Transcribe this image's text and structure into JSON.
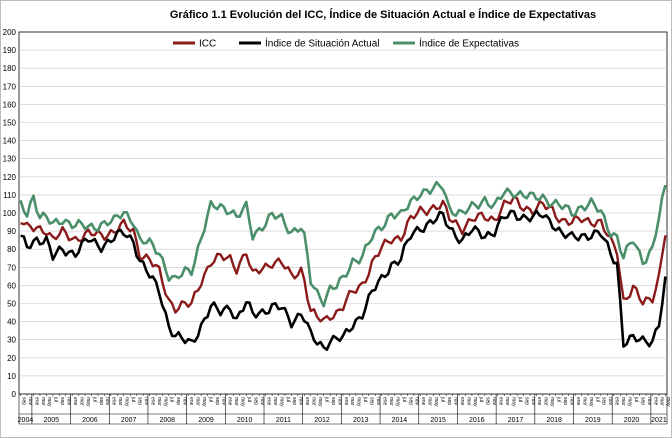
{
  "chart_data": {
    "type": "line",
    "title": "Gráfico 1.1 Evolución del ICC, Índice de Situación Actual e Índice de Expectativas",
    "xlabel": "",
    "ylabel": "",
    "ylim": [
      0,
      200
    ],
    "y_ticks": [
      0,
      10,
      20,
      30,
      40,
      50,
      60,
      70,
      80,
      90,
      100,
      110,
      120,
      130,
      140,
      150,
      160,
      170,
      180,
      190,
      200
    ],
    "grid": true,
    "legend_position": "top",
    "x_start": "2004-09",
    "x_end": "2021-05",
    "month_labels": [
      "ene",
      "feb",
      "mar",
      "abr",
      "may",
      "jun",
      "jul",
      "ago",
      "sep",
      "oct",
      "nov",
      "dic"
    ],
    "years": [
      "2004",
      "2005",
      "2006",
      "2007",
      "2008",
      "2009",
      "2010",
      "2011",
      "2012",
      "2013",
      "2014",
      "2015",
      "2016",
      "2017",
      "2018",
      "2019",
      "2020",
      "2021"
    ],
    "series": [
      {
        "name": "ICC",
        "color": "#8b1a1a",
        "anchors": [
          [
            "2004-09",
            96
          ],
          [
            "2004-11",
            91
          ],
          [
            "2005-02",
            92
          ],
          [
            "2005-05",
            91
          ],
          [
            "2005-07",
            85
          ],
          [
            "2005-10",
            89
          ],
          [
            "2006-02",
            86
          ],
          [
            "2006-06",
            88
          ],
          [
            "2006-10",
            88
          ],
          [
            "2007-02",
            90
          ],
          [
            "2007-05",
            93
          ],
          [
            "2007-08",
            90
          ],
          [
            "2007-10",
            78
          ],
          [
            "2008-01",
            74
          ],
          [
            "2008-04",
            67
          ],
          [
            "2008-07",
            52
          ],
          [
            "2008-09",
            48
          ],
          [
            "2008-12",
            49
          ],
          [
            "2009-02",
            49
          ],
          [
            "2009-05",
            63
          ],
          [
            "2009-08",
            73
          ],
          [
            "2009-11",
            75
          ],
          [
            "2010-02",
            75
          ],
          [
            "2010-04",
            70
          ],
          [
            "2010-07",
            78
          ],
          [
            "2010-09",
            65
          ],
          [
            "2010-12",
            70
          ],
          [
            "2011-03",
            73
          ],
          [
            "2011-06",
            72
          ],
          [
            "2011-09",
            65
          ],
          [
            "2011-12",
            69
          ],
          [
            "2012-01",
            64
          ],
          [
            "2012-03",
            45
          ],
          [
            "2012-05",
            42
          ],
          [
            "2012-07",
            40
          ],
          [
            "2012-09",
            44
          ],
          [
            "2012-11",
            45
          ],
          [
            "2013-01",
            48
          ],
          [
            "2013-04",
            56
          ],
          [
            "2013-07",
            61
          ],
          [
            "2013-10",
            72
          ],
          [
            "2014-01",
            80
          ],
          [
            "2014-04",
            86
          ],
          [
            "2014-07",
            87
          ],
          [
            "2014-10",
            96
          ],
          [
            "2015-01",
            101
          ],
          [
            "2015-04",
            103
          ],
          [
            "2015-08",
            104
          ],
          [
            "2015-10",
            97
          ],
          [
            "2016-02",
            92
          ],
          [
            "2016-05",
            96
          ],
          [
            "2016-09",
            98
          ],
          [
            "2016-12",
            97
          ],
          [
            "2017-03",
            104
          ],
          [
            "2017-06",
            107
          ],
          [
            "2017-09",
            104
          ],
          [
            "2017-12",
            101
          ],
          [
            "2018-03",
            104
          ],
          [
            "2018-06",
            102
          ],
          [
            "2018-09",
            96
          ],
          [
            "2018-12",
            94
          ],
          [
            "2019-03",
            97
          ],
          [
            "2019-06",
            96
          ],
          [
            "2019-09",
            94
          ],
          [
            "2019-12",
            84
          ],
          [
            "2020-02",
            80
          ],
          [
            "2020-04",
            52
          ],
          [
            "2020-07",
            58
          ],
          [
            "2020-10",
            50
          ],
          [
            "2021-01",
            54
          ],
          [
            "2021-03",
            65
          ],
          [
            "2021-05",
            89
          ]
        ]
      },
      {
        "name": "Índice de Situación Actual",
        "color": "#000000",
        "anchors": [
          [
            "2004-09",
            86
          ],
          [
            "2004-11",
            81
          ],
          [
            "2005-02",
            86
          ],
          [
            "2005-05",
            85
          ],
          [
            "2005-07",
            75
          ],
          [
            "2005-10",
            80
          ],
          [
            "2006-02",
            78
          ],
          [
            "2006-06",
            85
          ],
          [
            "2006-10",
            82
          ],
          [
            "2007-02",
            86
          ],
          [
            "2007-05",
            89
          ],
          [
            "2007-08",
            85
          ],
          [
            "2007-10",
            74
          ],
          [
            "2008-01",
            65
          ],
          [
            "2008-04",
            57
          ],
          [
            "2008-07",
            38
          ],
          [
            "2008-09",
            32
          ],
          [
            "2008-12",
            29
          ],
          [
            "2009-02",
            28
          ],
          [
            "2009-05",
            38
          ],
          [
            "2009-08",
            48
          ],
          [
            "2009-11",
            45
          ],
          [
            "2010-02",
            49
          ],
          [
            "2010-04",
            41
          ],
          [
            "2010-07",
            50
          ],
          [
            "2010-09",
            44
          ],
          [
            "2010-12",
            46
          ],
          [
            "2011-03",
            48
          ],
          [
            "2011-06",
            47
          ],
          [
            "2011-09",
            40
          ],
          [
            "2011-12",
            45
          ],
          [
            "2012-01",
            42
          ],
          [
            "2012-03",
            32
          ],
          [
            "2012-05",
            28
          ],
          [
            "2012-07",
            26
          ],
          [
            "2012-09",
            30
          ],
          [
            "2012-11",
            31
          ],
          [
            "2013-01",
            30
          ],
          [
            "2013-04",
            38
          ],
          [
            "2013-07",
            45
          ],
          [
            "2013-10",
            56
          ],
          [
            "2014-01",
            63
          ],
          [
            "2014-04",
            72
          ],
          [
            "2014-07",
            75
          ],
          [
            "2014-10",
            87
          ],
          [
            "2015-01",
            92
          ],
          [
            "2015-04",
            95
          ],
          [
            "2015-08",
            98
          ],
          [
            "2015-10",
            92
          ],
          [
            "2016-02",
            85
          ],
          [
            "2016-05",
            90
          ],
          [
            "2016-09",
            88
          ],
          [
            "2016-12",
            90
          ],
          [
            "2017-03",
            97
          ],
          [
            "2017-06",
            100
          ],
          [
            "2017-09",
            98
          ],
          [
            "2017-12",
            97
          ],
          [
            "2018-03",
            99
          ],
          [
            "2018-06",
            95
          ],
          [
            "2018-09",
            88
          ],
          [
            "2018-12",
            86
          ],
          [
            "2019-03",
            88
          ],
          [
            "2019-06",
            88
          ],
          [
            "2019-09",
            88
          ],
          [
            "2019-12",
            78
          ],
          [
            "2020-02",
            73
          ],
          [
            "2020-04",
            28
          ],
          [
            "2020-07",
            30
          ],
          [
            "2020-10",
            30
          ],
          [
            "2021-01",
            30
          ],
          [
            "2021-03",
            38
          ],
          [
            "2021-05",
            62
          ]
        ]
      },
      {
        "name": "Índice de Expectativas",
        "color": "#4a8f6a",
        "anchors": [
          [
            "2004-09",
            104
          ],
          [
            "2004-11",
            100
          ],
          [
            "2005-01",
            110
          ],
          [
            "2005-03",
            98
          ],
          [
            "2005-05",
            97
          ],
          [
            "2005-07",
            93
          ],
          [
            "2005-10",
            97
          ],
          [
            "2006-02",
            93
          ],
          [
            "2006-06",
            92
          ],
          [
            "2006-10",
            94
          ],
          [
            "2007-02",
            95
          ],
          [
            "2007-05",
            101
          ],
          [
            "2007-08",
            96
          ],
          [
            "2007-10",
            84
          ],
          [
            "2008-01",
            83
          ],
          [
            "2008-04",
            79
          ],
          [
            "2008-07",
            65
          ],
          [
            "2008-09",
            62
          ],
          [
            "2008-12",
            68
          ],
          [
            "2009-02",
            69
          ],
          [
            "2009-05",
            86
          ],
          [
            "2009-08",
            103
          ],
          [
            "2009-11",
            104
          ],
          [
            "2010-02",
            102
          ],
          [
            "2010-04",
            97
          ],
          [
            "2010-07",
            103
          ],
          [
            "2010-09",
            88
          ],
          [
            "2010-12",
            93
          ],
          [
            "2011-03",
            98
          ],
          [
            "2011-06",
            97
          ],
          [
            "2011-09",
            90
          ],
          [
            "2011-12",
            92
          ],
          [
            "2012-01",
            86
          ],
          [
            "2012-03",
            62
          ],
          [
            "2012-05",
            56
          ],
          [
            "2012-07",
            52
          ],
          [
            "2012-09",
            58
          ],
          [
            "2012-11",
            59
          ],
          [
            "2013-01",
            63
          ],
          [
            "2013-04",
            74
          ],
          [
            "2013-07",
            76
          ],
          [
            "2013-10",
            86
          ],
          [
            "2014-01",
            93
          ],
          [
            "2014-04",
            100
          ],
          [
            "2014-07",
            98
          ],
          [
            "2014-10",
            106
          ],
          [
            "2015-01",
            112
          ],
          [
            "2015-04",
            112
          ],
          [
            "2015-08",
            115
          ],
          [
            "2015-10",
            103
          ],
          [
            "2016-02",
            99
          ],
          [
            "2016-05",
            103
          ],
          [
            "2016-09",
            108
          ],
          [
            "2016-12",
            103
          ],
          [
            "2017-03",
            111
          ],
          [
            "2017-06",
            112
          ],
          [
            "2017-09",
            110
          ],
          [
            "2017-12",
            108
          ],
          [
            "2018-03",
            109
          ],
          [
            "2018-06",
            106
          ],
          [
            "2018-09",
            103
          ],
          [
            "2018-12",
            100
          ],
          [
            "2019-03",
            104
          ],
          [
            "2019-06",
            105
          ],
          [
            "2019-09",
            100
          ],
          [
            "2019-12",
            90
          ],
          [
            "2020-02",
            87
          ],
          [
            "2020-04",
            75
          ],
          [
            "2020-07",
            85
          ],
          [
            "2020-10",
            74
          ],
          [
            "2021-01",
            80
          ],
          [
            "2021-03",
            97
          ],
          [
            "2021-05",
            114
          ]
        ]
      }
    ]
  }
}
